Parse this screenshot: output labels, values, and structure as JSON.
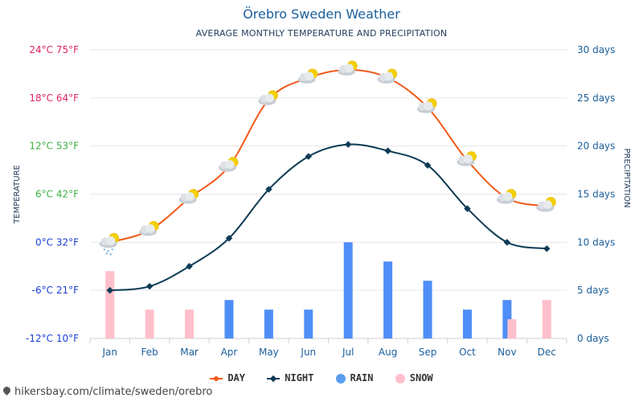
{
  "title": "Örebro Sweden Weather",
  "subtitle": "AVERAGE MONTHLY TEMPERATURE AND PRECIPITATION",
  "footer": "hikersbay.com/climate/sweden/orebro",
  "colors": {
    "day": "#f05a1a",
    "night": "#0d3b55",
    "rain": "#4f8ef7",
    "snow": "#ffc0cb",
    "rain_legend": "#5b9ef0",
    "grid": "#e6e6e6",
    "right_axis": "#1b5f9c",
    "title": "#1b5f9c"
  },
  "legend": [
    {
      "key": "day",
      "label": "DAY"
    },
    {
      "key": "night",
      "label": "NIGHT"
    },
    {
      "key": "rain",
      "label": "RAIN"
    },
    {
      "key": "snow",
      "label": "SNOW"
    }
  ],
  "chart_data": {
    "type": "line",
    "categories": [
      "Jan",
      "Feb",
      "Mar",
      "Apr",
      "May",
      "Jun",
      "Jul",
      "Aug",
      "Sep",
      "Oct",
      "Nov",
      "Dec"
    ],
    "series": [
      {
        "name": "DAY",
        "axis": "temperature",
        "kind": "line",
        "values": [
          0,
          1.5,
          5.5,
          9.5,
          17.8,
          20.5,
          21.5,
          20.5,
          16.8,
          10.2,
          5.5,
          4.5
        ]
      },
      {
        "name": "NIGHT",
        "axis": "temperature",
        "kind": "line",
        "values": [
          -6,
          -5.5,
          -3,
          0.5,
          6.6,
          10.7,
          12.2,
          11.4,
          9.6,
          4.2,
          0,
          -0.8
        ]
      },
      {
        "name": "RAIN",
        "axis": "precipitation",
        "kind": "bar",
        "values": [
          0,
          0,
          0,
          4,
          3,
          3,
          10,
          8,
          6,
          3,
          4,
          0
        ]
      },
      {
        "name": "SNOW",
        "axis": "precipitation",
        "kind": "bar",
        "values": [
          7,
          3,
          3,
          0,
          0,
          0,
          0,
          0,
          0,
          0,
          2,
          4
        ]
      }
    ],
    "left_axis": {
      "label": "TEMPERATURE",
      "range": [
        -12,
        24
      ],
      "ticks": [
        {
          "value": 24,
          "label": "24°C 75°F",
          "color": "#e0245e"
        },
        {
          "value": 18,
          "label": "18°C 64°F",
          "color": "#e0245e"
        },
        {
          "value": 12,
          "label": "12°C 53°F",
          "color": "#3cb043"
        },
        {
          "value": 6,
          "label": "6°C 42°F",
          "color": "#3cb043"
        },
        {
          "value": 0,
          "label": "0°C 32°F",
          "color": "#1a3fd0"
        },
        {
          "value": -6,
          "label": "-6°C 21°F",
          "color": "#1a3fd0"
        },
        {
          "value": -12,
          "label": "-12°C 10°F",
          "color": "#1a3fd0"
        }
      ]
    },
    "right_axis": {
      "label": "PRECIPITATION",
      "range": [
        0,
        30
      ],
      "ticks": [
        {
          "value": 30,
          "label": "30 days"
        },
        {
          "value": 25,
          "label": "25 days"
        },
        {
          "value": 20,
          "label": "20 days"
        },
        {
          "value": 15,
          "label": "15 days"
        },
        {
          "value": 10,
          "label": "10 days"
        },
        {
          "value": 5,
          "label": "5 days"
        },
        {
          "value": 0,
          "label": "0 days"
        }
      ]
    },
    "weather_icons": [
      "snow-cloud-sun",
      "cloud-sun",
      "cloud-sun",
      "cloud-sun",
      "cloud-sun",
      "cloud-sun",
      "cloud-sun",
      "cloud-sun",
      "cloud-sun",
      "cloud-sun",
      "cloud-sun",
      "cloud-sun"
    ]
  }
}
